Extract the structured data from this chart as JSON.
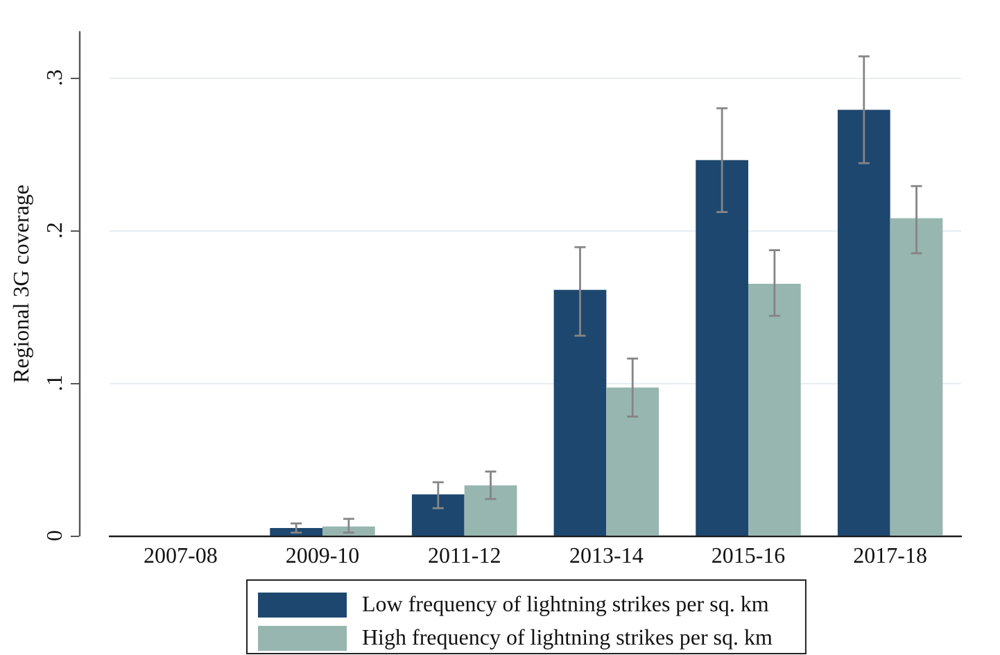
{
  "chart_data": {
    "type": "bar",
    "ylabel": "Regional 3G coverage",
    "categories": [
      "2007-08",
      "2009-10",
      "2011-12",
      "2013-14",
      "2015-16",
      "2017-18"
    ],
    "series": [
      {
        "name": "Low frequency of lightning strikes per sq. km",
        "color": "#1d476f",
        "values": [
          0,
          0.005,
          0.027,
          0.161,
          0.246,
          0.279
        ],
        "errors": [
          null,
          [
            0.002,
            0.008
          ],
          [
            0.018,
            0.035
          ],
          [
            0.131,
            0.189
          ],
          [
            0.212,
            0.28
          ],
          [
            0.244,
            0.314
          ]
        ]
      },
      {
        "name": "High frequency of lightning strikes per sq. km",
        "color": "#98b6b0",
        "values": [
          0,
          0.006,
          0.033,
          0.097,
          0.165,
          0.208
        ],
        "errors": [
          null,
          [
            0.002,
            0.011
          ],
          [
            0.024,
            0.042
          ],
          [
            0.078,
            0.116
          ],
          [
            0.144,
            0.187
          ],
          [
            0.185,
            0.229
          ]
        ]
      }
    ],
    "ylim": [
      0,
      0.33
    ],
    "yticks": [
      0,
      {
        "value": 0.1,
        "label": ".1"
      },
      {
        "value": 0.2,
        "label": ".2"
      },
      {
        "value": 0.3,
        "label": ".3"
      }
    ],
    "grid": "y",
    "legend": "bottom"
  }
}
